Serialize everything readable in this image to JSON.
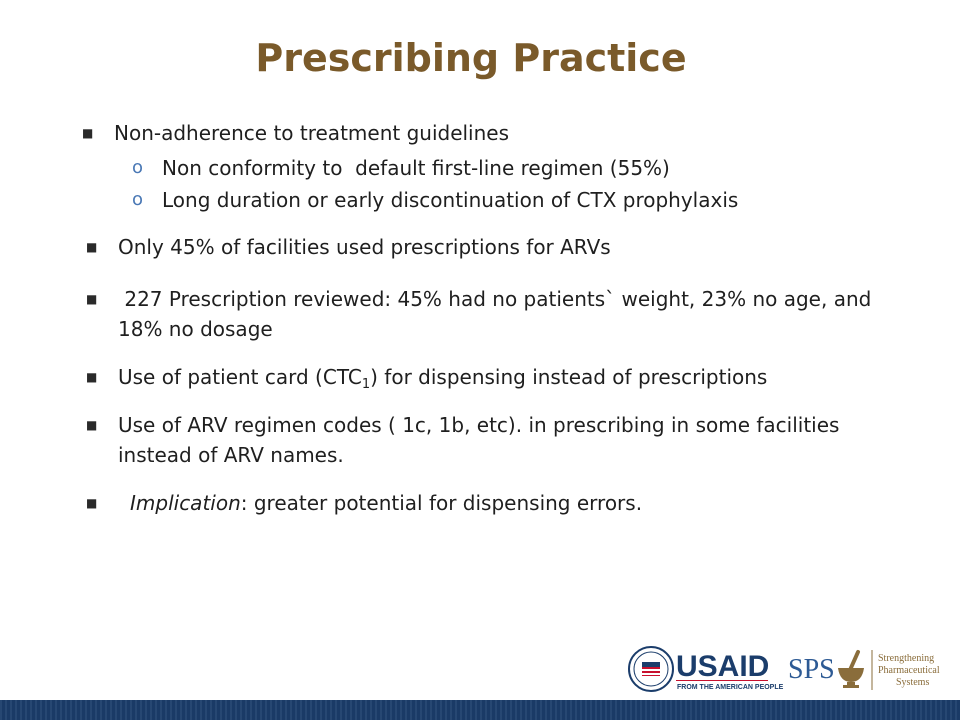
{
  "slide": {
    "title": "Prescribing Practice"
  },
  "bullets": {
    "b1": "Non-adherence to treatment guidelines",
    "b1_sub1": "Non conformity to  default first-line regimen (55%)",
    "b1_sub2": "Long duration or early discontinuation of CTX prophylaxis",
    "b2": "Only 45% of facilities used prescriptions for ARVs",
    "b3_line1": " 227 Prescription reviewed: 45% had no patients` weight, 23% no age, and",
    "b3_line2": "18% no dosage",
    "b4_pre": "Use of patient card (CTC",
    "b4_sub": "1",
    "b4_post": ") for dispensing instead of prescriptions",
    "b5_line1": "Use of ARV regimen codes ( 1c, 1b, etc). in prescribing in some facilities",
    "b5_line2": "instead of ARV names.",
    "b6_label": "Implication",
    "b6_rest": ": greater potential for dispensing errors."
  },
  "markers": {
    "square": "■",
    "circle": "o"
  },
  "logos": {
    "usaid_text": "USAID",
    "usaid_tagline": "FROM THE AMERICAN PEOPLE",
    "sps_text": "SPS",
    "sps_line1": "Strengthening",
    "sps_line2": "Pharmaceutical",
    "sps_line3": "Systems"
  },
  "colors": {
    "title": "#7a5a2a",
    "sub_marker": "#4a78b5",
    "footer_bar": "#1b3d6b",
    "usaid_blue": "#1b3d6b",
    "usaid_red": "#c8102e",
    "sps_blue": "#2d5a94",
    "sps_brown": "#8a6d3b"
  }
}
